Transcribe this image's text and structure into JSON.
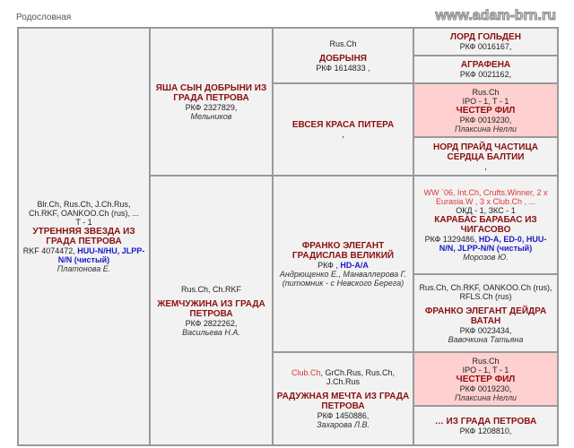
{
  "page_title": "Родословная",
  "watermark": "www.adam-brn.ru",
  "colors": {
    "name": "#8b1010",
    "health": "#1a1ac8",
    "title_red": "#e03535",
    "highlight": "#ffd0d0"
  },
  "cells": [
    {
      "id": "dog",
      "titles": [
        [
          "Blr.Ch, Rus.Ch, J.Ch.Rus, Ch.RKF, OANKOO.Ch (rus), ...",
          ""
        ],
        [
          "T - 1",
          ""
        ]
      ],
      "name": "УТРЕННЯЯ ЗВЕЗДА ИЗ ГРАДА ПЕТРОВА",
      "reg": "RKF 4074472, ",
      "health": "HUU-N/HU, JLPP-N/N (чистый)",
      "owner": "Платонова Е."
    },
    {
      "id": "sire",
      "titles": [],
      "name": "ЯША СЫН ДОБРЫНИ ИЗ ГРАДА ПЕТРОВА",
      "reg": "РКФ 2327829,",
      "owner": "Мельников"
    },
    {
      "id": "dam",
      "titles": [
        [
          "Rus.Ch, Ch.RKF",
          ""
        ]
      ],
      "gap": true,
      "name": "ЖЕМЧУЖИНА ИЗ ГРАДА ПЕТРОВА",
      "reg": "РКФ 2822262,",
      "owner": "Васильева Н.А."
    },
    {
      "id": "ss",
      "titles": [
        [
          "Rus.Ch",
          ""
        ]
      ],
      "gap": true,
      "name": "ДОБРЫНЯ",
      "reg": "РКФ 1614833 ,"
    },
    {
      "id": "sd",
      "titles": [],
      "name": "ЕВСЕЯ КРАСА ПИТЕРА",
      "reg": ","
    },
    {
      "id": "ds",
      "titles": [],
      "name": "ФРАНКО ЭЛЕГАНТ ГРАДИСЛАВ ВЕЛИКИЙ",
      "reg": "РКФ , ",
      "health": "HD-A/A",
      "owner": "Андрющенко Е., Манваллерова Г. (питомник - с Невского Берега)"
    },
    {
      "id": "dd",
      "titles": [
        [
          "Club.Ch",
          ", GrCh.Rus, Rus.Ch, J.Ch.Rus"
        ]
      ],
      "gap": true,
      "name": "РАДУЖНАЯ МЕЧТА ИЗ ГРАДА ПЕТРОВА",
      "reg": "РКФ 1450886,",
      "owner": "Захарова Л.В."
    },
    {
      "id": "sss",
      "titles": [],
      "name": "ЛОРД ГОЛЬДЕН",
      "reg": "РКФ 0016167,"
    },
    {
      "id": "ssd",
      "titles": [],
      "name": "АГРАФЕНА",
      "reg": "РКФ 0021162,"
    },
    {
      "id": "sds",
      "pink": true,
      "titles": [
        [
          "Rus.Ch",
          ""
        ],
        [
          "IPO - 1, T - 1",
          ""
        ]
      ],
      "name": "ЧЕСТЕР ФИЛ",
      "reg": "РКФ 0019230,",
      "owner": "Плаксина Нелли"
    },
    {
      "id": "sdd",
      "titles": [],
      "name": "НОРД ПРАЙД ЧАСТИЦА СЕРДЦА БАЛТИИ",
      "reg": ","
    },
    {
      "id": "dss",
      "titles": [
        [
          "WW `06, Int.Ch, Crufts.Winner, 2 x Eurasia.W , 3 x Club.Ch , ...",
          ""
        ],
        [
          "ОКД - 1, ЗКС - 1",
          ""
        ]
      ],
      "redfirst": true,
      "name": "КАРАБАС БАРАБАС ИЗ ЧИГАСОВО",
      "reg": "РКФ 1329486, ",
      "health": "HD-A, ED-0, HUU-N/N, JLPP-N/N (чистый)",
      "owner": "Морозов Ю."
    },
    {
      "id": "dsd",
      "titles": [
        [
          "Rus.Ch, Ch.RKF, OANKOO.Ch (rus), RFLS.Ch (rus)",
          ""
        ]
      ],
      "gap": true,
      "name": "ФРАНКО ЭЛЕГАНТ ДЕЙДРА ВАТАН",
      "reg": "РКФ 0023434,",
      "owner": "Вавочкина Татьяна"
    },
    {
      "id": "dds",
      "pink": true,
      "titles": [
        [
          "Rus.Ch",
          ""
        ],
        [
          "IPO - 1, T - 1",
          ""
        ]
      ],
      "name": "ЧЕСТЕР ФИЛ",
      "reg": "РКФ 0019230,",
      "owner": "Плаксина Нелли"
    },
    {
      "id": "ddd",
      "titles": [],
      "name": "… ИЗ ГРАДА ПЕТРОВА",
      "reg": "РКФ 1208810,"
    }
  ]
}
